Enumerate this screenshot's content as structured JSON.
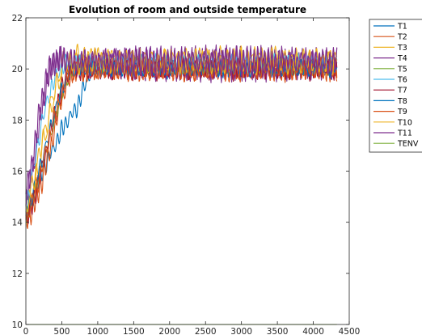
{
  "chart_data": {
    "type": "line",
    "title": "Evolution of room and outside temperature",
    "xlabel": "",
    "ylabel": "",
    "xlim": [
      0,
      4500
    ],
    "ylim": [
      10,
      22
    ],
    "xticks": [
      0,
      500,
      1000,
      1500,
      2000,
      2500,
      3000,
      3500,
      4000,
      4500
    ],
    "yticks": [
      10,
      12,
      14,
      16,
      18,
      20,
      22
    ],
    "grid": false,
    "legend_position": "outside-right",
    "legend_labels": [
      "T1",
      "T2",
      "T3",
      "T4",
      "T5",
      "T6",
      "T7",
      "T8",
      "T9",
      "T10",
      "T11",
      "TENV"
    ],
    "series": [
      {
        "name": "T1",
        "color": "#0072bd",
        "x": [
          0,
          100,
          200,
          300,
          400,
          500,
          600,
          700,
          800,
          900,
          1000,
          1500,
          2000,
          2500,
          3000,
          3500,
          4000,
          4330
        ],
        "y": [
          14.1,
          14.9,
          15.8,
          16.4,
          17.0,
          17.6,
          18.1,
          18.4,
          19.2,
          19.9,
          20.1,
          20.1,
          20.0,
          20.1,
          20.0,
          20.1,
          20.0,
          20.0
        ],
        "osc": 0.35,
        "period": 60
      },
      {
        "name": "T2",
        "color": "#d95319",
        "x": [
          0,
          100,
          200,
          300,
          400,
          500,
          600,
          700,
          800,
          900,
          1000,
          1500,
          2000,
          2500,
          3000,
          3500,
          4000,
          4330
        ],
        "y": [
          14.0,
          14.6,
          15.4,
          16.4,
          17.6,
          18.8,
          19.7,
          20.0,
          20.0,
          20.0,
          20.0,
          20.0,
          20.0,
          20.0,
          20.0,
          20.0,
          20.0,
          20.0
        ],
        "osc": 0.45,
        "period": 52
      },
      {
        "name": "T3",
        "color": "#edb120",
        "x": [
          0,
          100,
          200,
          300,
          400,
          500,
          600,
          700,
          800,
          900,
          1000,
          1500,
          2000,
          2500,
          3000,
          3500,
          4000,
          4330
        ],
        "y": [
          14.3,
          15.3,
          16.5,
          17.8,
          19.0,
          20.0,
          20.3,
          20.4,
          20.4,
          20.4,
          20.3,
          20.3,
          20.3,
          20.3,
          20.3,
          20.3,
          20.3,
          20.3
        ],
        "osc": 0.5,
        "period": 95
      },
      {
        "name": "T4",
        "color": "#7e2f8e",
        "x": [
          0,
          100,
          200,
          300,
          400,
          500,
          600,
          700,
          800,
          900,
          1000,
          1500,
          2000,
          2500,
          3000,
          3500,
          4000,
          4330
        ],
        "y": [
          14.8,
          16.2,
          18.0,
          19.6,
          20.3,
          20.4,
          20.3,
          20.2,
          20.2,
          20.2,
          20.2,
          20.2,
          20.2,
          20.2,
          20.2,
          20.2,
          20.2,
          20.2
        ],
        "osc": 0.6,
        "period": 48
      },
      {
        "name": "T5",
        "color": "#77ac30",
        "x": [
          0,
          100,
          200,
          300,
          400,
          500,
          600,
          700,
          800,
          900,
          1000,
          1500,
          2000,
          2500,
          3000,
          3500,
          4000,
          4330
        ],
        "y": [
          14.2,
          15.0,
          16.0,
          17.0,
          18.0,
          19.0,
          19.8,
          20.1,
          20.1,
          20.1,
          20.1,
          20.1,
          20.1,
          20.1,
          20.1,
          20.1,
          20.1,
          20.1
        ],
        "osc": 0.3,
        "period": 70
      },
      {
        "name": "T6",
        "color": "#4dbeee",
        "x": [
          0,
          100,
          200,
          300,
          400,
          500,
          600,
          700,
          800,
          900,
          1000,
          1500,
          2000,
          2500,
          3000,
          3500,
          4000,
          4330
        ],
        "y": [
          14.6,
          16.0,
          17.6,
          18.8,
          19.6,
          20.1,
          20.2,
          20.2,
          20.2,
          20.2,
          20.2,
          20.2,
          20.2,
          20.2,
          20.2,
          20.2,
          20.2,
          20.2
        ],
        "osc": 0.35,
        "period": 66
      },
      {
        "name": "T7",
        "color": "#a2142f",
        "x": [
          0,
          100,
          200,
          300,
          400,
          500,
          600,
          700,
          800,
          900,
          1000,
          1500,
          2000,
          2500,
          3000,
          3500,
          4000,
          4330
        ],
        "y": [
          14.0,
          14.8,
          15.8,
          17.0,
          18.2,
          19.2,
          19.9,
          20.0,
          20.0,
          20.0,
          20.0,
          20.0,
          20.0,
          20.0,
          20.0,
          20.0,
          20.0,
          20.0
        ],
        "osc": 0.4,
        "period": 56
      },
      {
        "name": "T8",
        "color": "#0072bd",
        "x": [
          0,
          100,
          200,
          300,
          400,
          500,
          600,
          700,
          800,
          900,
          1000,
          1500,
          2000,
          2500,
          3000,
          3500,
          4000,
          4330
        ],
        "y": [
          14.3,
          15.2,
          16.2,
          17.2,
          18.3,
          19.2,
          19.8,
          20.0,
          20.0,
          20.0,
          20.0,
          20.0,
          20.0,
          20.0,
          20.0,
          20.0,
          20.0,
          20.0
        ],
        "osc": 0.3,
        "period": 74
      },
      {
        "name": "T9",
        "color": "#d95319",
        "x": [
          0,
          100,
          200,
          300,
          400,
          500,
          600,
          700,
          800,
          900,
          1000,
          1500,
          2000,
          2500,
          3000,
          3500,
          4000,
          4330
        ],
        "y": [
          14.1,
          14.9,
          15.9,
          17.0,
          18.1,
          19.0,
          19.7,
          20.0,
          20.0,
          20.0,
          20.0,
          20.0,
          20.0,
          20.0,
          20.0,
          20.0,
          20.0,
          20.0
        ],
        "osc": 0.4,
        "period": 62
      },
      {
        "name": "T10",
        "color": "#edb120",
        "x": [
          0,
          100,
          200,
          300,
          400,
          500,
          600,
          700,
          800,
          900,
          1000,
          1500,
          2000,
          2500,
          3000,
          3500,
          4000,
          4330
        ],
        "y": [
          14.4,
          15.5,
          16.8,
          18.0,
          19.2,
          20.1,
          20.3,
          20.3,
          20.3,
          20.3,
          20.3,
          20.3,
          20.3,
          20.3,
          20.3,
          20.3,
          20.3,
          20.3
        ],
        "osc": 0.45,
        "period": 88
      },
      {
        "name": "T11",
        "color": "#7e2f8e",
        "x": [
          0,
          100,
          200,
          300,
          400,
          500,
          600,
          700,
          800,
          900,
          1000,
          1500,
          2000,
          2500,
          3000,
          3500,
          4000,
          4330
        ],
        "y": [
          15.0,
          16.5,
          18.5,
          19.8,
          20.3,
          20.4,
          20.3,
          20.3,
          20.3,
          20.3,
          20.3,
          20.3,
          20.3,
          20.3,
          20.3,
          20.3,
          20.3,
          20.3
        ],
        "osc": 0.5,
        "period": 50
      },
      {
        "name": "TENV",
        "color": "#77ac30",
        "x": [
          0,
          4330
        ],
        "y": [
          10.0,
          10.0
        ],
        "osc": 0,
        "period": 1
      }
    ]
  }
}
